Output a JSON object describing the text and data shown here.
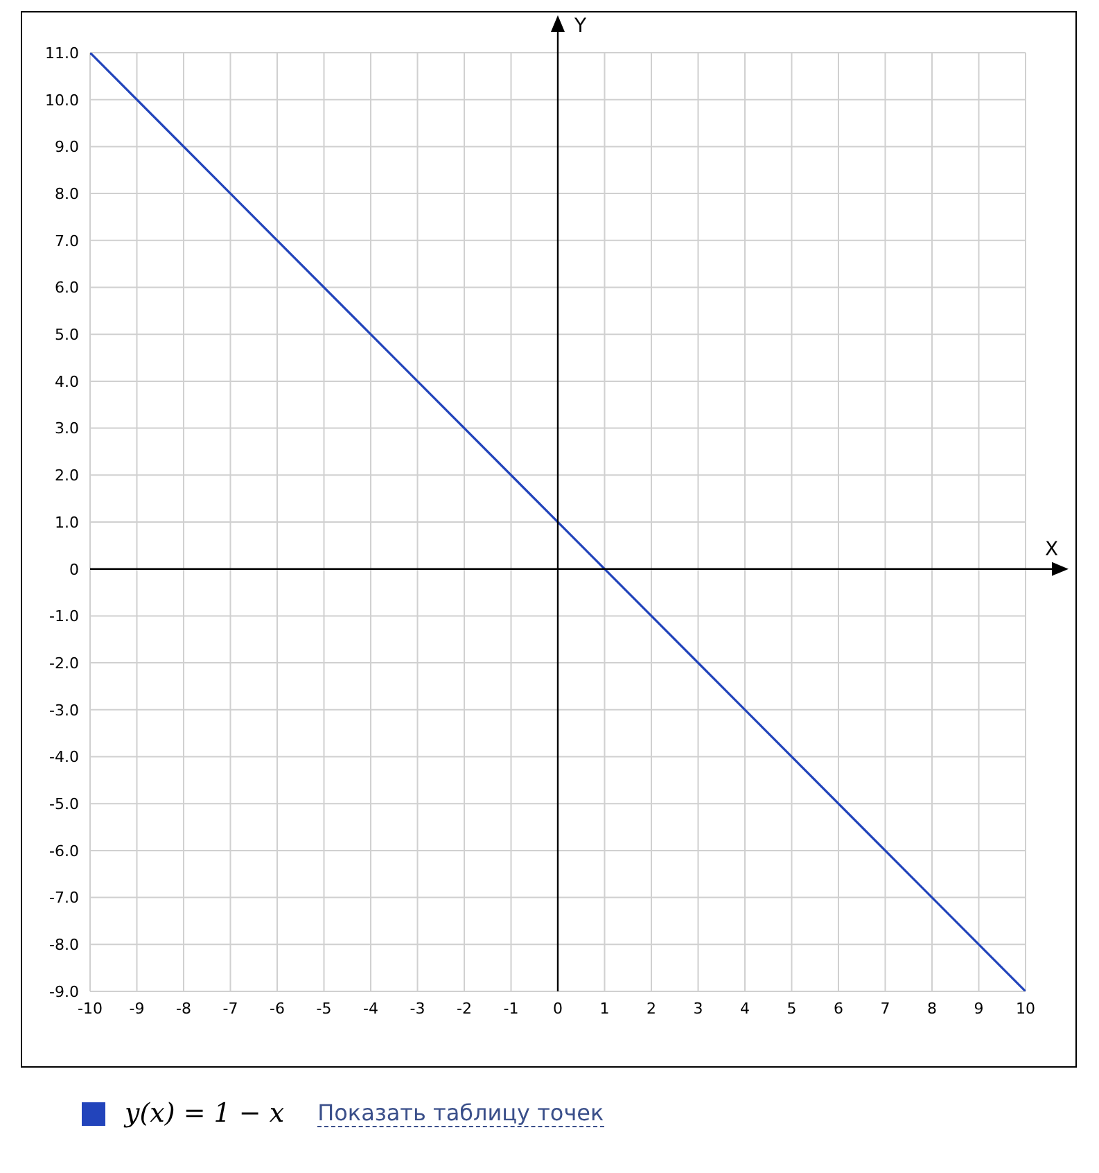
{
  "chart_data": {
    "type": "line",
    "xlabel": "X",
    "ylabel": "Y",
    "x": [
      -10,
      10
    ],
    "series": [
      {
        "name": "y(x) = 1 − x",
        "color": "#2244bb",
        "values": [
          11,
          -9
        ]
      }
    ],
    "xlim": [
      -10,
      10
    ],
    "ylim": [
      -9,
      11
    ],
    "xticks": [
      -10,
      -9,
      -8,
      -7,
      -6,
      -5,
      -4,
      -3,
      -2,
      -1,
      0,
      1,
      2,
      3,
      4,
      5,
      6,
      7,
      8,
      9,
      10
    ],
    "yticks": [
      {
        "value": 11,
        "label": "11.0"
      },
      {
        "value": 10,
        "label": "10.0"
      },
      {
        "value": 9,
        "label": "9.0"
      },
      {
        "value": 8,
        "label": "8.0"
      },
      {
        "value": 7,
        "label": "7.0"
      },
      {
        "value": 6,
        "label": "6.0"
      },
      {
        "value": 5,
        "label": "5.0"
      },
      {
        "value": 4,
        "label": "4.0"
      },
      {
        "value": 3,
        "label": "3.0"
      },
      {
        "value": 2,
        "label": "2.0"
      },
      {
        "value": 1,
        "label": "1.0"
      },
      0,
      {
        "value": -1,
        "label": "-1.0"
      },
      {
        "value": -2,
        "label": "-2.0"
      },
      {
        "value": -3,
        "label": "-3.0"
      },
      {
        "value": -4,
        "label": "-4.0"
      },
      {
        "value": -5,
        "label": "-5.0"
      },
      {
        "value": -6,
        "label": "-6.0"
      },
      {
        "value": -7,
        "label": "-7.0"
      },
      {
        "value": -8,
        "label": "-8.0"
      },
      {
        "value": -9,
        "label": "-9.0"
      }
    ],
    "grid": true,
    "legend": "bottom left",
    "marker": "none",
    "line_style": "solid",
    "annotations": [
      "Показать таблицу точек"
    ]
  }
}
